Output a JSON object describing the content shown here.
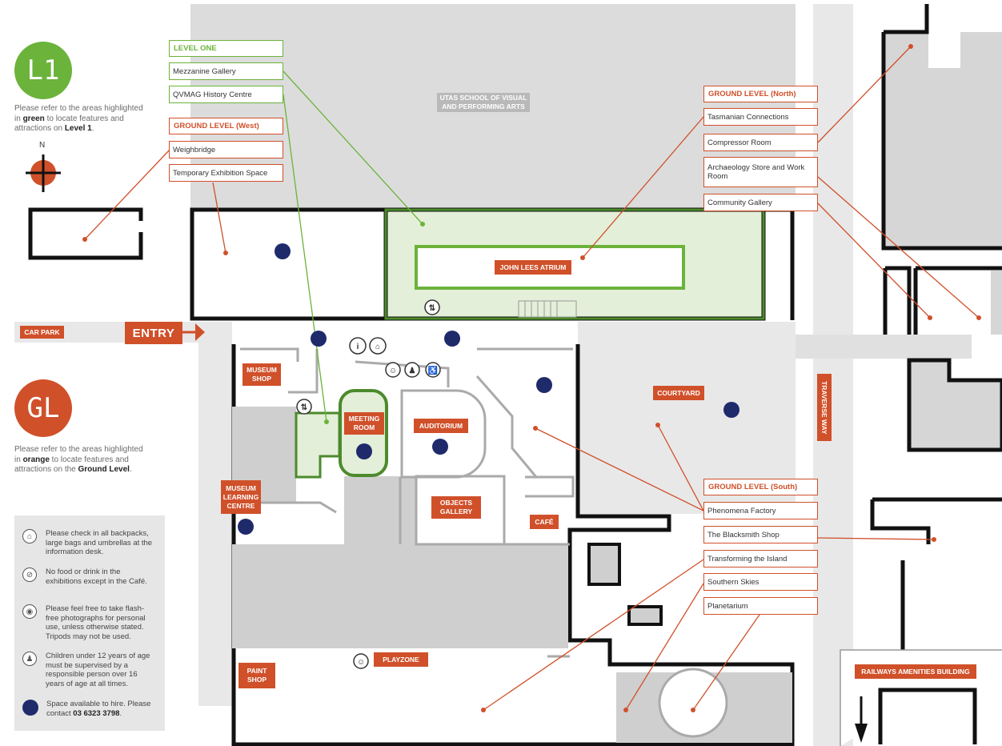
{
  "level_one": {
    "badge": "L1",
    "note_pre": "Please refer to the areas highlighted in ",
    "note_color": "green",
    "note_mid": " to locate features and attractions on ",
    "note_level": "Level 1",
    "note_end": "."
  },
  "ground_level": {
    "badge": "GL",
    "note_pre": "Please refer to the areas highlighted in ",
    "note_color": "orange",
    "note_mid": " to locate features and attractions on the ",
    "note_level": "Ground Level",
    "note_end": "."
  },
  "compass": {
    "north": "N"
  },
  "colors": {
    "green": "#6bb33b",
    "orange": "#d0502a",
    "navy": "#1f2a6b",
    "wall": "#111111",
    "grey": "#cfcfcf"
  },
  "directory": {
    "level_one": {
      "title": "LEVEL ONE",
      "items": [
        "Mezzanine Gallery",
        "QVMAG History Centre"
      ]
    },
    "ground_west": {
      "title": "GROUND LEVEL (West)",
      "items": [
        "Weighbridge",
        "Temporary Exhibition Space"
      ]
    },
    "ground_north": {
      "title": "GROUND LEVEL (North)",
      "items": [
        "Tasmanian Connections",
        "Compressor Room",
        "Archaeology Store and Work Room",
        "Community Gallery"
      ]
    },
    "ground_south": {
      "title": "GROUND LEVEL (South)",
      "items": [
        "Phenomena Factory",
        "The Blacksmith Shop",
        "Transforming the Island",
        "Southern Skies",
        "Planetarium"
      ]
    }
  },
  "map_labels": {
    "utas": "UTAS SCHOOL OF VISUAL AND PERFORMING ARTS",
    "john_lees": "JOHN LEES ATRIUM",
    "car_park": "CAR PARK",
    "entry": "ENTRY",
    "museum_shop": "MUSEUM SHOP",
    "meeting_room": "MEETING ROOM",
    "auditorium": "AUDITORIUM",
    "courtyard": "COURTYARD",
    "traverse_way": "TRAVERSE WAY",
    "museum_learning_centre": "MUSEUM LEARNING CENTRE",
    "objects_gallery": "OBJECTS GALLERY",
    "cafe": "CAFÉ",
    "playzone": "PLAYZONE",
    "paint_shop": "PAINT SHOP",
    "railways": "RAILWAYS AMENITIES BUILDING"
  },
  "legend": [
    {
      "icon": "coat-hanger-icon",
      "text": "Please check in all backpacks, large bags and umbrellas at the information desk."
    },
    {
      "icon": "no-food-icon",
      "text": "No food or drink in the exhibitions except in the Café."
    },
    {
      "icon": "camera-icon",
      "text": "Please feel free to take flash-free photographs for personal use, unless otherwise stated. Tripods may not be used."
    },
    {
      "icon": "family-icon",
      "text": "Children under 12 years of age must be supervised by a responsible person over 16 years of age at all times."
    },
    {
      "icon": "hire-dot-icon",
      "text_pre": "Space available to hire. Please contact ",
      "phone": "03 6323 3798",
      "text_end": "."
    }
  ]
}
